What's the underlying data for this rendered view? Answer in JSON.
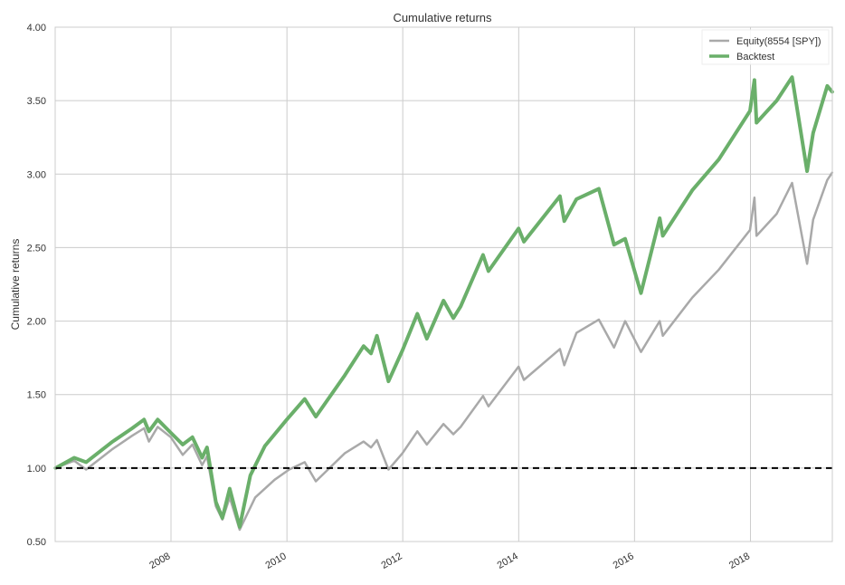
{
  "chart_data": {
    "type": "line",
    "title": "Cumulative returns",
    "xlabel": "",
    "ylabel": "Cumulative returns",
    "ylim": [
      0.5,
      4.0
    ],
    "xlim": [
      "2006-01-01",
      "2019-06-01"
    ],
    "yticks": [
      "0.50",
      "1.00",
      "1.50",
      "2.00",
      "2.50",
      "3.00",
      "3.50",
      "4.00"
    ],
    "xticks": [
      "2008",
      "2010",
      "2012",
      "2014",
      "2016",
      "2018"
    ],
    "grid": true,
    "legend_position": "top-right",
    "reference_line": {
      "y": 1.0,
      "style": "dashed",
      "color": "#000000"
    },
    "series": [
      {
        "name": "Equity(8554 [SPY])",
        "color": "#a9a9a9",
        "points": [
          [
            "2006-01-03",
            1.0
          ],
          [
            "2006-05-01",
            1.05
          ],
          [
            "2006-07-15",
            0.99
          ],
          [
            "2006-12-29",
            1.13
          ],
          [
            "2007-05-01",
            1.22
          ],
          [
            "2007-07-15",
            1.27
          ],
          [
            "2007-08-15",
            1.18
          ],
          [
            "2007-10-09",
            1.28
          ],
          [
            "2007-12-31",
            1.21
          ],
          [
            "2008-03-15",
            1.09
          ],
          [
            "2008-05-15",
            1.16
          ],
          [
            "2008-07-15",
            1.02
          ],
          [
            "2008-08-15",
            1.08
          ],
          [
            "2008-10-10",
            0.74
          ],
          [
            "2008-11-20",
            0.65
          ],
          [
            "2009-01-05",
            0.8
          ],
          [
            "2009-03-09",
            0.58
          ],
          [
            "2009-06-15",
            0.8
          ],
          [
            "2009-10-15",
            0.92
          ],
          [
            "2010-01-15",
            0.99
          ],
          [
            "2010-04-23",
            1.04
          ],
          [
            "2010-07-02",
            0.91
          ],
          [
            "2010-12-31",
            1.1
          ],
          [
            "2011-04-29",
            1.18
          ],
          [
            "2011-06-15",
            1.14
          ],
          [
            "2011-07-22",
            1.19
          ],
          [
            "2011-10-03",
            0.99
          ],
          [
            "2011-12-30",
            1.1
          ],
          [
            "2012-04-02",
            1.25
          ],
          [
            "2012-06-01",
            1.16
          ],
          [
            "2012-09-14",
            1.3
          ],
          [
            "2012-11-15",
            1.23
          ],
          [
            "2012-12-31",
            1.28
          ],
          [
            "2013-05-21",
            1.49
          ],
          [
            "2013-06-24",
            1.42
          ],
          [
            "2013-12-31",
            1.69
          ],
          [
            "2014-02-03",
            1.6
          ],
          [
            "2014-09-18",
            1.81
          ],
          [
            "2014-10-15",
            1.7
          ],
          [
            "2014-12-31",
            1.92
          ],
          [
            "2015-05-21",
            2.01
          ],
          [
            "2015-08-25",
            1.82
          ],
          [
            "2015-11-03",
            2.0
          ],
          [
            "2016-02-11",
            1.79
          ],
          [
            "2016-06-08",
            2.0
          ],
          [
            "2016-06-27",
            1.9
          ],
          [
            "2016-12-30",
            2.16
          ],
          [
            "2017-06-15",
            2.35
          ],
          [
            "2017-12-29",
            2.62
          ],
          [
            "2018-01-26",
            2.84
          ],
          [
            "2018-02-08",
            2.58
          ],
          [
            "2018-06-15",
            2.73
          ],
          [
            "2018-09-20",
            2.94
          ],
          [
            "2018-12-24",
            2.39
          ],
          [
            "2019-01-31",
            2.69
          ],
          [
            "2019-04-30",
            2.96
          ],
          [
            "2019-05-31",
            3.01
          ]
        ]
      },
      {
        "name": "Backtest",
        "color": "#6aaf6a",
        "points": [
          [
            "2006-01-03",
            1.0
          ],
          [
            "2006-05-01",
            1.07
          ],
          [
            "2006-07-15",
            1.04
          ],
          [
            "2006-12-29",
            1.18
          ],
          [
            "2007-05-01",
            1.27
          ],
          [
            "2007-07-15",
            1.33
          ],
          [
            "2007-08-15",
            1.25
          ],
          [
            "2007-10-09",
            1.33
          ],
          [
            "2007-12-31",
            1.24
          ],
          [
            "2008-03-15",
            1.16
          ],
          [
            "2008-05-15",
            1.21
          ],
          [
            "2008-07-15",
            1.07
          ],
          [
            "2008-08-15",
            1.14
          ],
          [
            "2008-10-10",
            0.77
          ],
          [
            "2008-11-20",
            0.66
          ],
          [
            "2009-01-05",
            0.86
          ],
          [
            "2009-03-09",
            0.6
          ],
          [
            "2009-05-15",
            0.95
          ],
          [
            "2009-08-15",
            1.15
          ],
          [
            "2009-12-31",
            1.33
          ],
          [
            "2010-04-23",
            1.47
          ],
          [
            "2010-07-02",
            1.35
          ],
          [
            "2010-12-31",
            1.63
          ],
          [
            "2011-04-29",
            1.83
          ],
          [
            "2011-06-15",
            1.78
          ],
          [
            "2011-07-22",
            1.9
          ],
          [
            "2011-10-03",
            1.59
          ],
          [
            "2011-12-30",
            1.8
          ],
          [
            "2012-04-02",
            2.05
          ],
          [
            "2012-06-01",
            1.88
          ],
          [
            "2012-09-14",
            2.14
          ],
          [
            "2012-11-15",
            2.02
          ],
          [
            "2012-12-31",
            2.1
          ],
          [
            "2013-05-21",
            2.45
          ],
          [
            "2013-06-24",
            2.34
          ],
          [
            "2013-12-31",
            2.63
          ],
          [
            "2014-02-03",
            2.54
          ],
          [
            "2014-09-18",
            2.85
          ],
          [
            "2014-10-15",
            2.68
          ],
          [
            "2014-12-31",
            2.83
          ],
          [
            "2015-05-21",
            2.9
          ],
          [
            "2015-08-25",
            2.52
          ],
          [
            "2015-11-03",
            2.56
          ],
          [
            "2016-02-11",
            2.19
          ],
          [
            "2016-06-08",
            2.7
          ],
          [
            "2016-06-27",
            2.58
          ],
          [
            "2016-12-30",
            2.89
          ],
          [
            "2017-06-15",
            3.1
          ],
          [
            "2017-12-29",
            3.43
          ],
          [
            "2018-01-26",
            3.64
          ],
          [
            "2018-02-08",
            3.35
          ],
          [
            "2018-06-15",
            3.5
          ],
          [
            "2018-09-20",
            3.66
          ],
          [
            "2018-12-24",
            3.02
          ],
          [
            "2019-01-31",
            3.28
          ],
          [
            "2019-04-30",
            3.6
          ],
          [
            "2019-05-31",
            3.56
          ]
        ]
      }
    ]
  }
}
